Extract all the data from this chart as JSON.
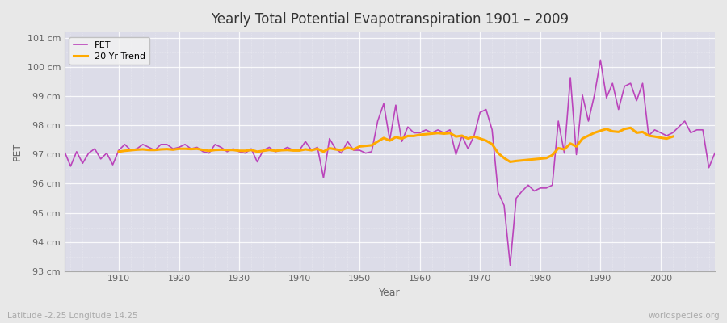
{
  "title": "Yearly Total Potential Evapotranspiration 1901 – 2009",
  "xlabel": "Year",
  "ylabel": "PET",
  "subtitle_left": "Latitude -2.25 Longitude 14.25",
  "subtitle_right": "worldspecies.org",
  "pet_color": "#bb44bb",
  "trend_color": "#ffaa00",
  "bg_color": "#e8e8e8",
  "plot_bg_color": "#dcdce8",
  "years": [
    1901,
    1902,
    1903,
    1904,
    1905,
    1906,
    1907,
    1908,
    1909,
    1910,
    1911,
    1912,
    1913,
    1914,
    1915,
    1916,
    1917,
    1918,
    1919,
    1920,
    1921,
    1922,
    1923,
    1924,
    1925,
    1926,
    1927,
    1928,
    1929,
    1930,
    1931,
    1932,
    1933,
    1934,
    1935,
    1936,
    1937,
    1938,
    1939,
    1940,
    1941,
    1942,
    1943,
    1944,
    1945,
    1946,
    1947,
    1948,
    1949,
    1950,
    1951,
    1952,
    1953,
    1954,
    1955,
    1956,
    1957,
    1958,
    1959,
    1960,
    1961,
    1962,
    1963,
    1964,
    1965,
    1966,
    1967,
    1968,
    1969,
    1970,
    1971,
    1972,
    1973,
    1974,
    1975,
    1976,
    1977,
    1978,
    1979,
    1980,
    1981,
    1982,
    1983,
    1984,
    1985,
    1986,
    1987,
    1988,
    1989,
    1990,
    1991,
    1992,
    1993,
    1994,
    1995,
    1996,
    1997,
    1998,
    1999,
    2000,
    2001,
    2002,
    2003,
    2004,
    2005,
    2006,
    2007,
    2008,
    2009
  ],
  "pet_values": [
    97.1,
    96.6,
    97.1,
    96.7,
    97.05,
    97.2,
    96.85,
    97.05,
    96.65,
    97.15,
    97.35,
    97.15,
    97.2,
    97.35,
    97.25,
    97.15,
    97.35,
    97.35,
    97.2,
    97.25,
    97.35,
    97.2,
    97.25,
    97.1,
    97.05,
    97.35,
    97.25,
    97.1,
    97.2,
    97.1,
    97.05,
    97.2,
    96.75,
    97.15,
    97.25,
    97.1,
    97.15,
    97.25,
    97.15,
    97.15,
    97.45,
    97.15,
    97.25,
    96.2,
    97.55,
    97.2,
    97.05,
    97.45,
    97.15,
    97.15,
    97.05,
    97.1,
    98.15,
    98.75,
    97.5,
    98.7,
    97.45,
    97.95,
    97.75,
    97.75,
    97.85,
    97.75,
    97.85,
    97.75,
    97.85,
    97.0,
    97.65,
    97.2,
    97.65,
    98.45,
    98.55,
    97.85,
    95.7,
    95.25,
    93.2,
    95.5,
    95.75,
    95.95,
    95.75,
    95.85,
    95.85,
    95.95,
    98.15,
    97.05,
    99.65,
    97.0,
    99.05,
    98.15,
    99.05,
    100.25,
    98.95,
    99.45,
    98.55,
    99.35,
    99.45,
    98.85,
    99.45,
    97.65,
    97.85,
    97.75,
    97.65,
    97.75,
    97.95,
    98.15,
    97.75,
    97.85,
    97.85,
    96.55,
    97.05
  ],
  "trend_values": [
    null,
    null,
    null,
    null,
    null,
    null,
    null,
    null,
    null,
    97.1,
    97.13,
    97.15,
    97.17,
    97.18,
    97.16,
    97.16,
    97.18,
    97.19,
    97.17,
    97.2,
    97.2,
    97.19,
    97.2,
    97.16,
    97.13,
    97.16,
    97.17,
    97.16,
    97.16,
    97.13,
    97.13,
    97.16,
    97.1,
    97.13,
    97.16,
    97.13,
    97.15,
    97.16,
    97.14,
    97.14,
    97.18,
    97.15,
    97.2,
    97.1,
    97.22,
    97.18,
    97.15,
    97.24,
    97.18,
    97.28,
    97.3,
    97.32,
    97.45,
    97.57,
    97.48,
    97.6,
    97.55,
    97.64,
    97.64,
    97.68,
    97.7,
    97.72,
    97.74,
    97.72,
    97.74,
    97.62,
    97.65,
    97.55,
    97.62,
    97.55,
    97.48,
    97.36,
    97.05,
    96.88,
    96.75,
    96.78,
    96.8,
    96.82,
    96.84,
    96.86,
    96.88,
    96.98,
    97.22,
    97.18,
    97.38,
    97.28,
    97.55,
    97.65,
    97.75,
    97.82,
    97.88,
    97.8,
    97.78,
    97.88,
    97.92,
    97.75,
    97.78,
    97.65,
    97.62,
    97.58,
    97.55,
    97.62,
    null,
    null,
    null,
    null,
    null,
    null,
    null
  ],
  "ylim": [
    93.0,
    101.2
  ],
  "yticks": [
    93,
    94,
    95,
    96,
    97,
    98,
    99,
    100,
    101
  ],
  "ytick_labels": [
    "93 cm",
    "94 cm",
    "95 cm",
    "96 cm",
    "97 cm",
    "98 cm",
    "99 cm",
    "100 cm",
    "101 cm"
  ],
  "xlim": [
    1901,
    2009
  ],
  "xticks": [
    1910,
    1920,
    1930,
    1940,
    1950,
    1960,
    1970,
    1980,
    1990,
    2000
  ]
}
